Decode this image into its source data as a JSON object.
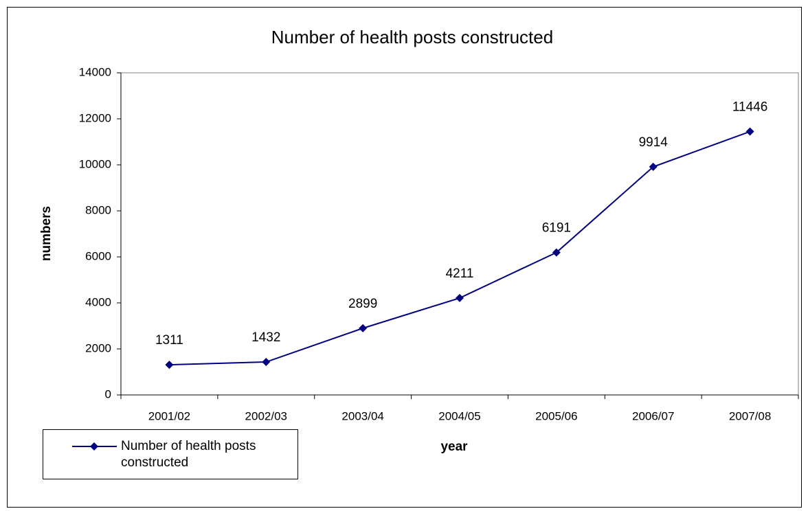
{
  "chart_data": {
    "type": "line",
    "title": "Number of health posts constructed",
    "x_label": "year",
    "y_label": "numbers",
    "categories": [
      "2001/02",
      "2002/03",
      "2003/04",
      "2004/05",
      "2005/06",
      "2006/07",
      "2007/08"
    ],
    "series": [
      {
        "name": "Number of health posts constructed",
        "color": "#000080",
        "values": [
          1311,
          1432,
          2899,
          4211,
          6191,
          9914,
          11446
        ]
      }
    ],
    "ylim": [
      0,
      14000
    ],
    "yticks": [
      0,
      2000,
      4000,
      6000,
      8000,
      10000,
      12000,
      14000
    ],
    "grid": false,
    "legend": "bottom-left"
  }
}
